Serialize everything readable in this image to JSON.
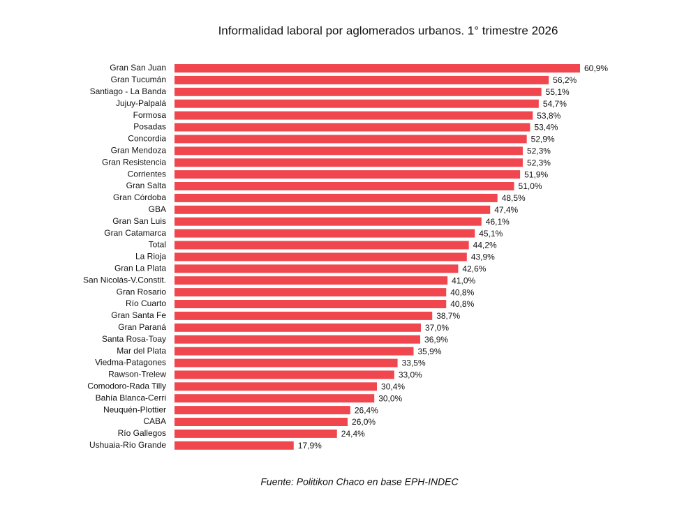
{
  "chart_data": {
    "type": "hbar",
    "title": "Informalidad laboral por aglomerados urbanos. 1° trimestre 2026",
    "source": "Fuente: Politikon Chaco en base EPH-INDEC",
    "color": "#f0474f",
    "categories": [
      "Gran San Juan",
      "Gran Tucumán",
      "Santiago - La Banda",
      "Jujuy-Palpalá",
      "Formosa",
      "Posadas",
      "Concordia",
      "Gran Mendoza",
      "Gran Resistencia",
      "Corrientes",
      "Gran Salta",
      "Gran Córdoba",
      "GBA",
      "Gran San Luis",
      "Gran Catamarca",
      "Total",
      "La Rioja",
      "Gran La Plata",
      "San Nicolás-V.Constit.",
      "Gran Rosario",
      "Río Cuarto",
      "Gran Santa Fe",
      "Gran Paraná",
      "Santa Rosa-Toay",
      "Mar del Plata",
      "Viedma-Patagones",
      "Rawson-Trelew",
      "Comodoro-Rada Tilly",
      "Bahía Blanca-Cerri",
      "Neuquén-Plottier",
      "CABA",
      "Río Gallegos",
      "Ushuaia-Río Grande"
    ],
    "values": [
      60.9,
      56.2,
      55.1,
      54.7,
      53.8,
      53.4,
      52.9,
      52.3,
      52.3,
      51.9,
      51.0,
      48.5,
      47.4,
      46.1,
      45.1,
      44.2,
      43.9,
      42.6,
      41.0,
      40.8,
      40.8,
      38.7,
      37.0,
      36.9,
      35.9,
      33.5,
      33.0,
      30.4,
      30.0,
      26.4,
      26.0,
      24.4,
      17.9
    ],
    "value_labels": [
      "60,9%",
      "56,2%",
      "55,1%",
      "54,7%",
      "53,8%",
      "53,4%",
      "52,9%",
      "52,3%",
      "52,3%",
      "51,9%",
      "51,0%",
      "48,5%",
      "47,4%",
      "46,1%",
      "45,1%",
      "44,2%",
      "43,9%",
      "42,6%",
      "41,0%",
      "40,8%",
      "40,8%",
      "38,7%",
      "37,0%",
      "36,9%",
      "35,9%",
      "33,5%",
      "33,0%",
      "30,4%",
      "30,0%",
      "26,4%",
      "26,0%",
      "24,4%",
      "17,9%"
    ]
  }
}
